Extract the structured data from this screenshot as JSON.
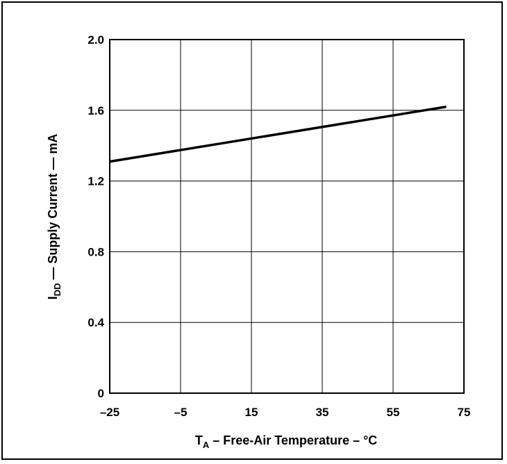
{
  "chart_data": {
    "type": "line",
    "x_axis": {
      "label_main": "T",
      "label_sub": "A",
      "label_rest": " – Free-Air Temperature – °C",
      "ticks": [
        "–25",
        "–5",
        "15",
        "35",
        "55",
        "75"
      ],
      "range": [
        -25,
        75
      ]
    },
    "y_axis": {
      "label_main": "I",
      "label_sub": "DD",
      "label_rest": " — Supply Current — mA",
      "ticks": [
        "0",
        "0.4",
        "0.8",
        "1.2",
        "1.6",
        "2.0"
      ],
      "range": [
        0,
        2.0
      ]
    },
    "grid": true,
    "series": [
      {
        "x": [
          -25,
          70
        ],
        "y": [
          1.31,
          1.62
        ]
      }
    ]
  },
  "colors": {
    "line": "#000000",
    "grid": "#000000",
    "background": "#ffffff"
  }
}
